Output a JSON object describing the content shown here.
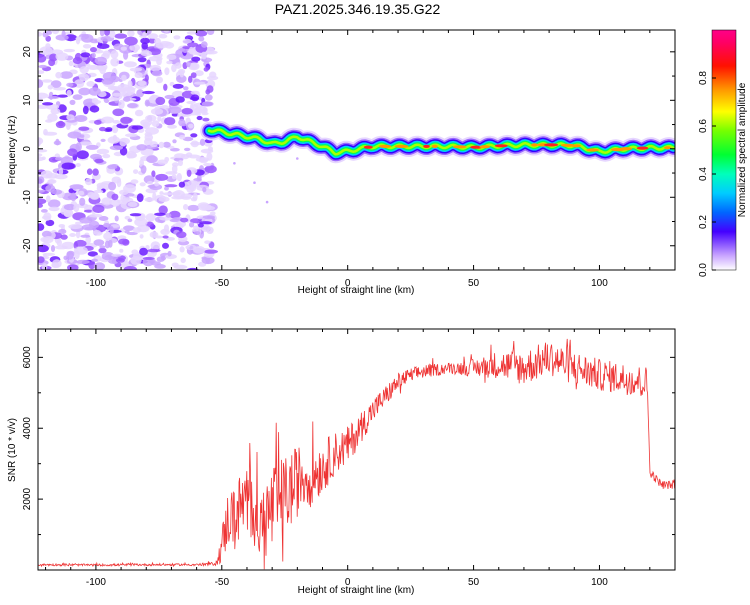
{
  "title": "PAZ1.2025.346.19.35.G22",
  "chart_data": [
    {
      "type": "heatmap",
      "name": "spectrogram",
      "xlabel": "Height of straight line (km)",
      "ylabel": "Frequency (Hz)",
      "xlim": [
        -123,
        130
      ],
      "ylim": [
        -25,
        24.5
      ],
      "xticks": [
        -100,
        -50,
        0,
        50,
        100
      ],
      "yticks": [
        20,
        10,
        0,
        -10,
        -20
      ],
      "noise_region_x": [
        -123,
        -55
      ],
      "signal_start_x": -55,
      "signal_trace": {
        "x": [
          -55,
          -50,
          -45,
          -40,
          -35,
          -30,
          -25,
          -20,
          -15,
          -10,
          -5,
          0,
          5,
          10,
          20,
          30,
          40,
          50,
          60,
          70,
          80,
          90,
          100,
          110,
          120,
          130
        ],
        "frequency": [
          4,
          3.5,
          3,
          2.5,
          2,
          1,
          1.5,
          2.5,
          1.5,
          0.5,
          -0.8,
          -0.5,
          0,
          0.5,
          0.5,
          0.5,
          0.5,
          0.3,
          0.6,
          0.8,
          0.8,
          0.7,
          -0.6,
          0,
          0.2,
          0.2
        ]
      },
      "colorbar": {
        "label": "Normalized spectral amplitude",
        "range": [
          0,
          1
        ],
        "ticks": [
          "0.0",
          "0.2",
          "0.4",
          "0.6",
          "0.8"
        ]
      }
    },
    {
      "type": "line",
      "name": "snr",
      "xlabel": "Height of straight line (km)",
      "ylabel": "SNR (10 * v/v)",
      "xlim": [
        -123,
        130
      ],
      "ylim": [
        0,
        6800
      ],
      "xticks": [
        -100,
        -50,
        0,
        50,
        100
      ],
      "yticks": [
        2000,
        4000,
        6000
      ],
      "color": "#ee3333",
      "x": [
        -123,
        -100,
        -80,
        -60,
        -52,
        -50,
        -47,
        -45,
        -42,
        -40,
        -38,
        -35,
        -32,
        -30,
        -28,
        -25,
        -22,
        -20,
        -18,
        -15,
        -12,
        -10,
        -5,
        0,
        5,
        10,
        15,
        20,
        25,
        30,
        40,
        50,
        60,
        70,
        80,
        90,
        100,
        110,
        119,
        120,
        122,
        125,
        130
      ],
      "values": [
        150,
        140,
        150,
        150,
        180,
        700,
        1600,
        1400,
        1900,
        1600,
        2000,
        1200,
        1500,
        1700,
        1900,
        2100,
        2300,
        2500,
        2700,
        2600,
        2800,
        2900,
        3300,
        3500,
        4000,
        4500,
        4900,
        5300,
        5500,
        5600,
        5700,
        5700,
        5800,
        5700,
        6000,
        5700,
        5500,
        5400,
        5300,
        2800,
        2600,
        2400,
        2400
      ],
      "noise_amplitude": [
        30,
        30,
        30,
        30,
        50,
        500,
        900,
        900,
        1000,
        1000,
        1200,
        900,
        1200,
        1300,
        1200,
        1100,
        1100,
        1000,
        900,
        850,
        800,
        750,
        600,
        550,
        450,
        350,
        300,
        250,
        200,
        200,
        150,
        250,
        400,
        500,
        500,
        500,
        450,
        450,
        450,
        150,
        120,
        120,
        120
      ]
    }
  ]
}
